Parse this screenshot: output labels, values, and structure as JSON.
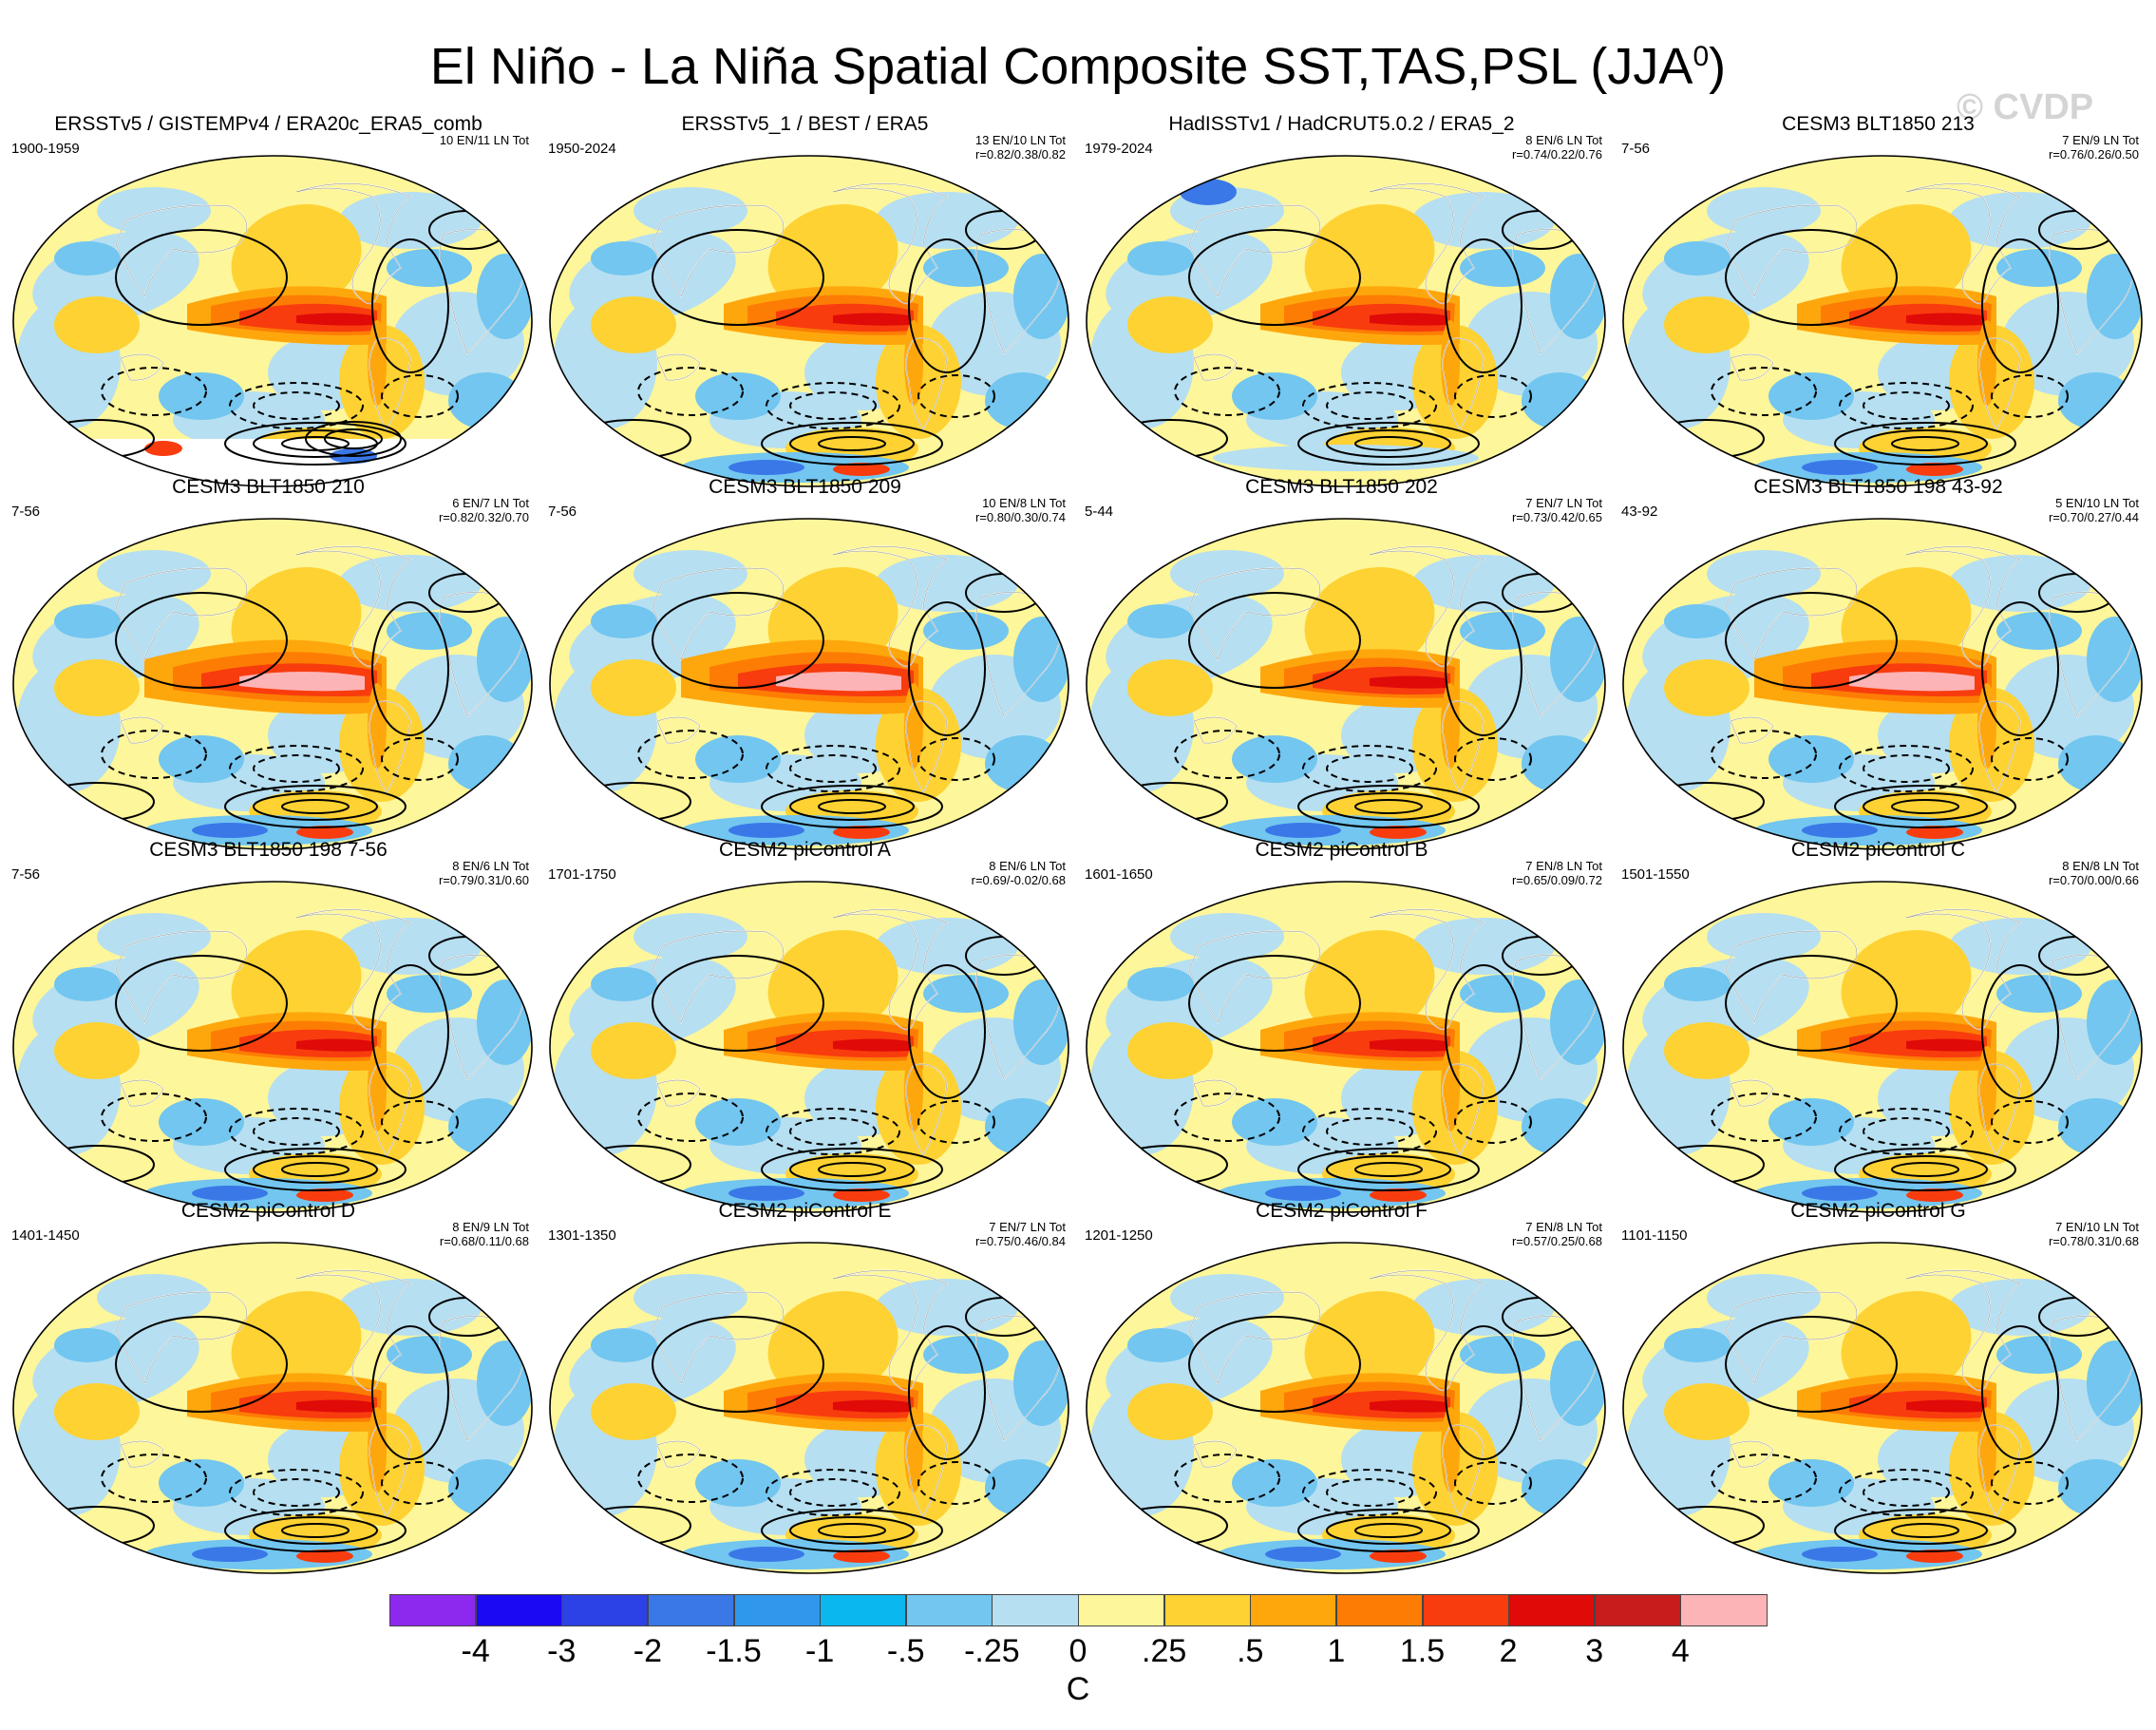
{
  "figure": {
    "title_main": "El Niño - La Niña Spatial Composite SST,TAS,PSL (JJA",
    "title_sup": "0",
    "title_end": ")",
    "watermark": "© CVDP"
  },
  "panels": [
    {
      "title": "ERSSTv5 / GISTEMPv4 / ERA20c_ERA5_comb",
      "period": "1900-1959",
      "stats1": "10 EN/11 LN Tot",
      "stats2": "",
      "style": "obs1"
    },
    {
      "title": "ERSSTv5_1 / BEST / ERA5",
      "period": "1950-2024",
      "stats1": "13 EN/10 LN Tot",
      "stats2": "r=0.82/0.38/0.82",
      "style": "obs2"
    },
    {
      "title": "HadISSTv1 / HadCRUT5.0.2 / ERA5_2",
      "period": "1979-2024",
      "stats1": "8 EN/6 LN Tot",
      "stats2": "r=0.74/0.22/0.76",
      "style": "obs3"
    },
    {
      "title": "CESM3 BLT1850 213",
      "period": "7-56",
      "stats1": "7 EN/9 LN Tot",
      "stats2": "r=0.76/0.26/0.50",
      "style": "model"
    },
    {
      "title": "CESM3 BLT1850 210",
      "period": "7-56",
      "stats1": "6 EN/7 LN Tot",
      "stats2": "r=0.82/0.32/0.70",
      "style": "strong"
    },
    {
      "title": "CESM3 BLT1850 209",
      "period": "7-56",
      "stats1": "10 EN/8 LN Tot",
      "stats2": "r=0.80/0.30/0.74",
      "style": "strong"
    },
    {
      "title": "CESM3 BLT1850 202",
      "period": "5-44",
      "stats1": "7 EN/7 LN Tot",
      "stats2": "r=0.73/0.42/0.65",
      "style": "model"
    },
    {
      "title": "CESM3 BLT1850 198 43-92",
      "period": "43-92",
      "stats1": "5 EN/10 LN Tot",
      "stats2": "r=0.70/0.27/0.44",
      "style": "strong"
    },
    {
      "title": "CESM3 BLT1850 198 7-56",
      "period": "7-56",
      "stats1": "8 EN/6 LN Tot",
      "stats2": "r=0.79/0.31/0.60",
      "style": "model"
    },
    {
      "title": "CESM2 piControl A",
      "period": "1701-1750",
      "stats1": "8 EN/6 LN Tot",
      "stats2": "r=0.69/-0.02/0.68",
      "style": "model"
    },
    {
      "title": "CESM2 piControl B",
      "period": "1601-1650",
      "stats1": "7 EN/8 LN Tot",
      "stats2": "r=0.65/0.09/0.72",
      "style": "model"
    },
    {
      "title": "CESM2 piControl C",
      "period": "1501-1550",
      "stats1": "8 EN/8 LN Tot",
      "stats2": "r=0.70/0.00/0.66",
      "style": "model"
    },
    {
      "title": "CESM2 piControl D",
      "period": "1401-1450",
      "stats1": "8 EN/9 LN Tot",
      "stats2": "r=0.68/0.11/0.68",
      "style": "model"
    },
    {
      "title": "CESM2 piControl E",
      "period": "1301-1350",
      "stats1": "7 EN/7 LN Tot",
      "stats2": "r=0.75/0.46/0.84",
      "style": "model"
    },
    {
      "title": "CESM2 piControl F",
      "period": "1201-1250",
      "stats1": "7 EN/8 LN Tot",
      "stats2": "r=0.57/0.25/0.68",
      "style": "model"
    },
    {
      "title": "CESM2 piControl G",
      "period": "1101-1150",
      "stats1": "7 EN/10 LN Tot",
      "stats2": "r=0.78/0.31/0.68",
      "style": "model"
    }
  ],
  "colorbar": {
    "colors": [
      "#8d29ef",
      "#1a09f2",
      "#2c42e6",
      "#3a78e8",
      "#2f98ec",
      "#0ab7ef",
      "#72c6f0",
      "#b6dff1",
      "#fef69a",
      "#fed232",
      "#fea70c",
      "#fd7d04",
      "#f83c0e",
      "#e00a08",
      "#c81c1c",
      "#fdb4b6"
    ],
    "labels": [
      "-4",
      "-3",
      "-2",
      "-1.5",
      "-1",
      "-.5",
      "-.25",
      "0",
      ".25",
      ".5",
      "1",
      "1.5",
      "2",
      "3",
      "4"
    ],
    "units": "C"
  }
}
